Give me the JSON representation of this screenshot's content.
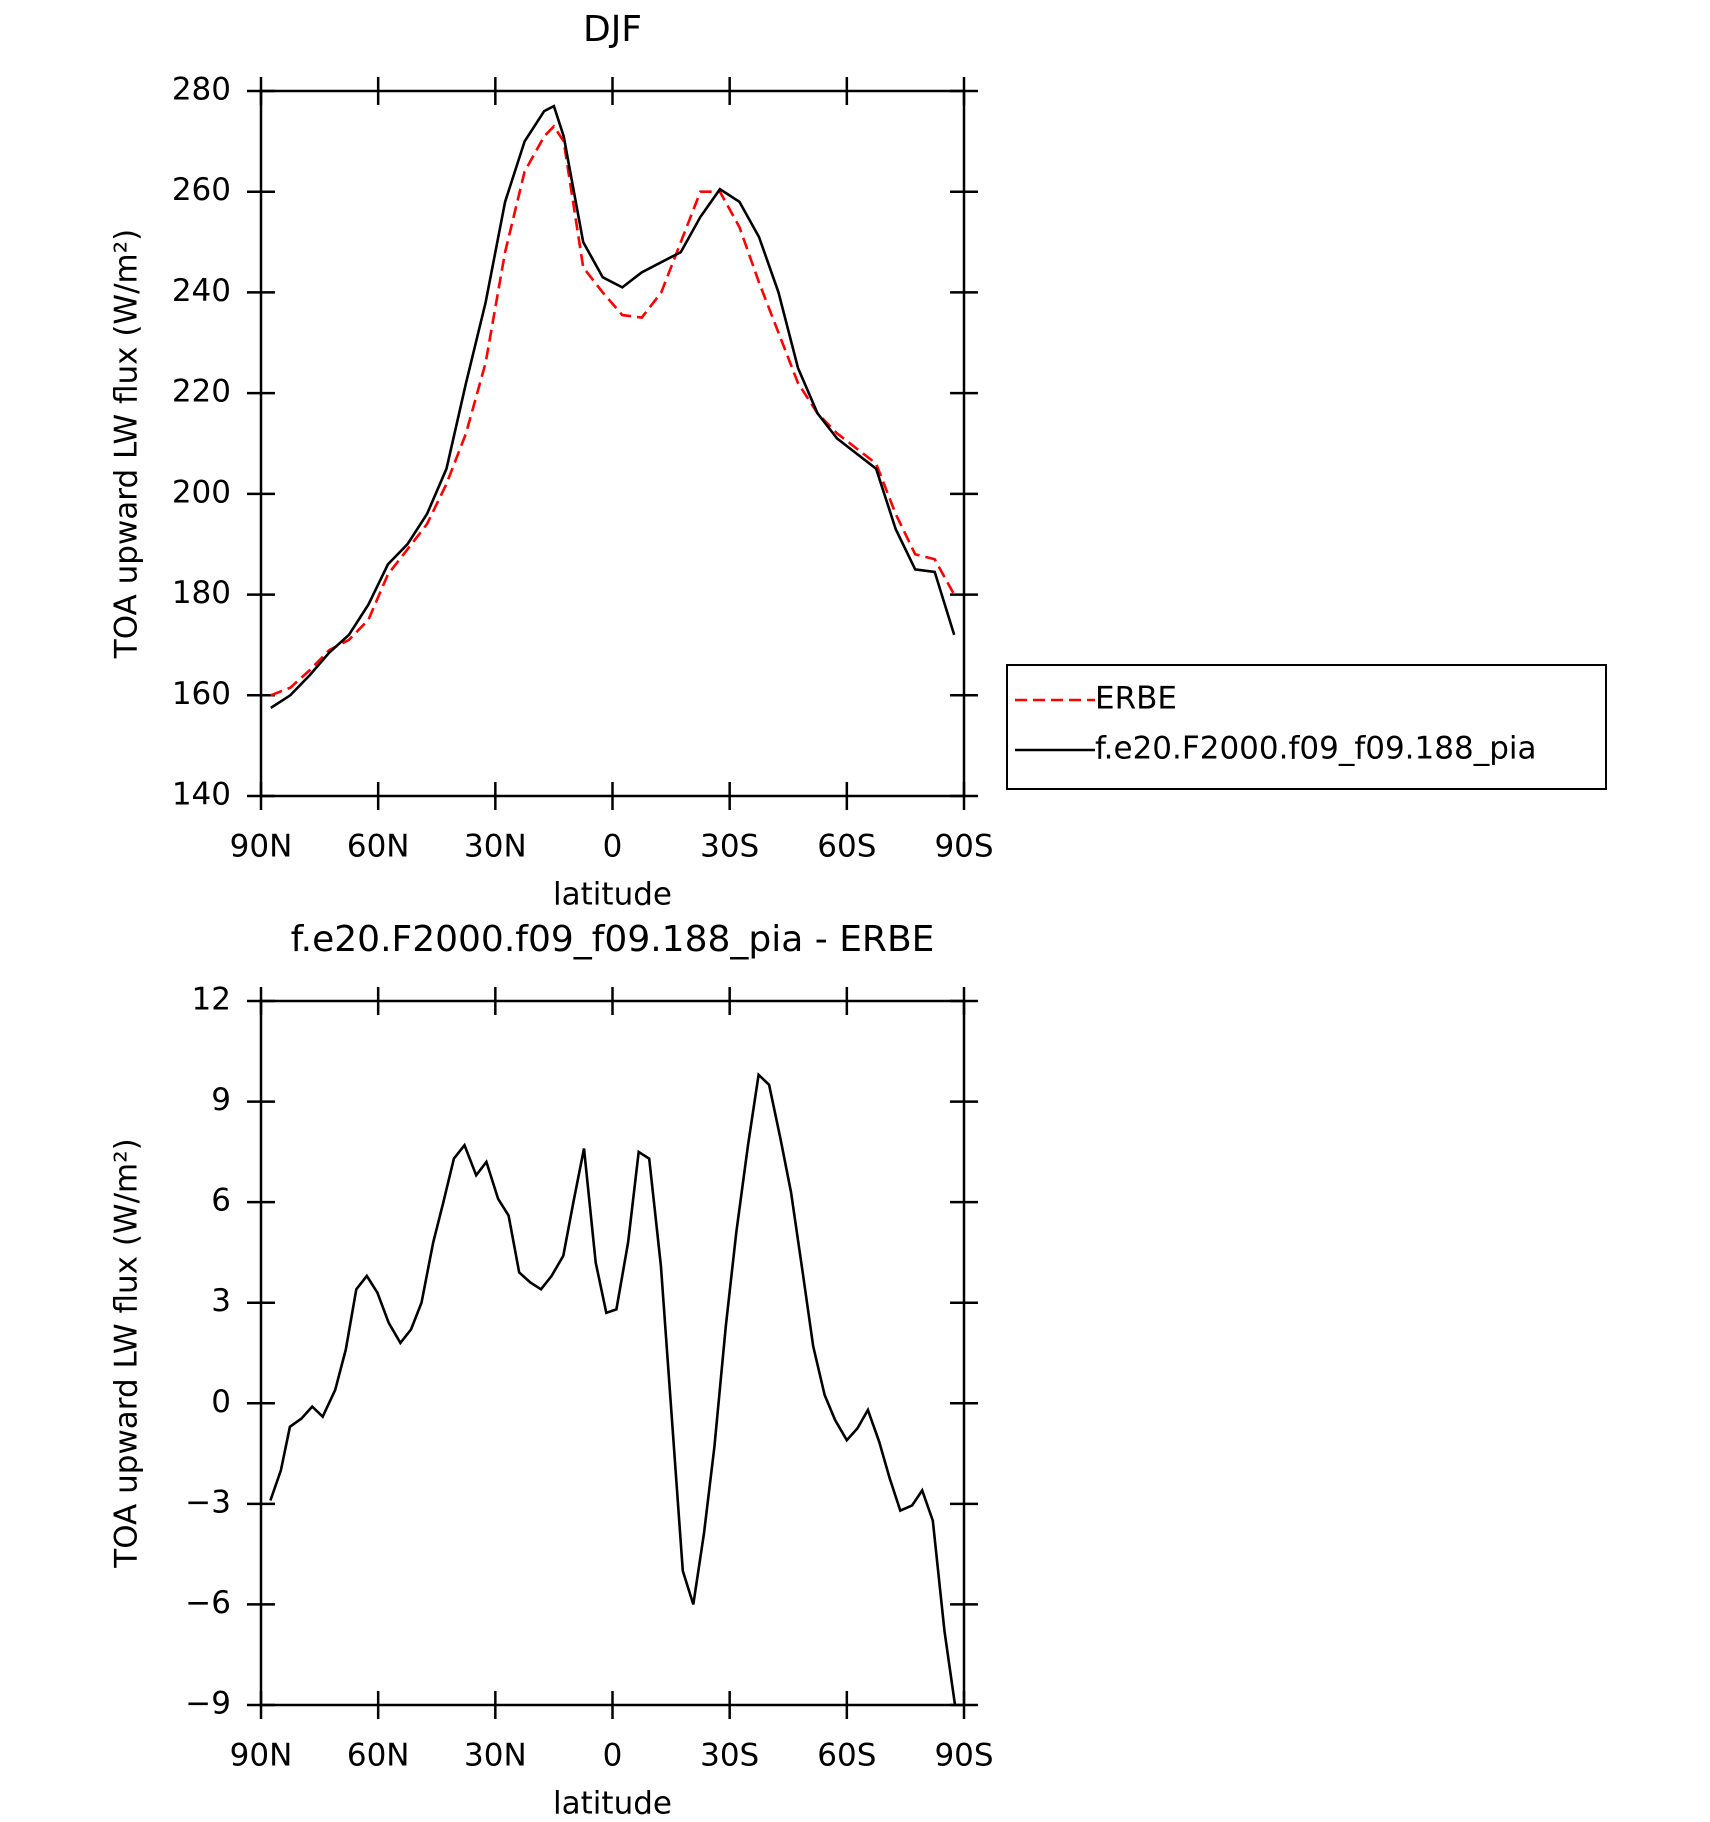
{
  "chart_data": [
    {
      "type": "line",
      "title": "DJF",
      "x_label": "latitude",
      "y_label": "TOA upward LW flux (W/m²)",
      "x": [
        87.5,
        82.5,
        77.5,
        72.5,
        67.5,
        62.5,
        57.5,
        52.5,
        47.5,
        42.5,
        37.5,
        32.5,
        27.5,
        22.5,
        17.5,
        15,
        12.5,
        7.5,
        2.5,
        -2.5,
        -7.5,
        -12.5,
        -17.5,
        -22.5,
        -27.5,
        -32.5,
        -37.5,
        -42.5,
        -47.5,
        -52.5,
        -57.5,
        -62.5,
        -67.5,
        -72.5,
        -77.5,
        -82.5,
        -87.5
      ],
      "series": [
        {
          "name": "ERBE",
          "color": "#ff0000",
          "dash": "dashed",
          "values": [
            160,
            161.5,
            165,
            169,
            171,
            175,
            184,
            189,
            194,
            202,
            212,
            226,
            248,
            264,
            271,
            273,
            270,
            245,
            240,
            235.5,
            235,
            240,
            250,
            260,
            260,
            253,
            242,
            232,
            222,
            216,
            212,
            209,
            206,
            196,
            188,
            187,
            180
          ]
        },
        {
          "name": "f.e20.F2000.f09_f09.188_pia",
          "color": "#000000",
          "dash": "solid",
          "values": [
            157.5,
            160,
            164,
            168.5,
            172,
            178,
            186,
            190,
            196,
            205,
            222,
            238,
            258,
            270,
            276,
            277,
            271,
            250,
            243,
            241,
            244,
            246,
            248,
            255,
            260.5,
            258,
            251,
            240,
            225,
            216,
            211,
            208,
            205,
            193,
            185,
            184.5,
            172
          ]
        }
      ],
      "xlim": [
        90,
        -90
      ],
      "xticks": [
        {
          "value": 90,
          "label": "90N"
        },
        {
          "value": 60,
          "label": "60N"
        },
        {
          "value": 30,
          "label": "30N"
        },
        0,
        {
          "value": -30,
          "label": "30S"
        },
        {
          "value": -60,
          "label": "60S"
        },
        {
          "value": -90,
          "label": "90S"
        }
      ],
      "ylim": [
        140,
        280
      ],
      "yticks": [
        140,
        160,
        180,
        200,
        220,
        240,
        260,
        280
      ],
      "legend": "outside-right"
    },
    {
      "type": "line",
      "title": "f.e20.F2000.f09_f09.188_pia - ERBE",
      "x_label": "latitude",
      "y_label": "TOA upward LW flux (W/m²)",
      "x": [
        87.6,
        84.9,
        82.6,
        79.6,
        76.9,
        74.2,
        71,
        68.3,
        65.6,
        62.9,
        60.2,
        57.3,
        54.3,
        51.6,
        48.9,
        45.9,
        43.3,
        40.6,
        37.9,
        34.9,
        32.3,
        29.3,
        26.6,
        23.9,
        21,
        18.3,
        15.6,
        12.6,
        10,
        7.3,
        4.3,
        1.6,
        -1,
        -4,
        -6.7,
        -9.4,
        -12.4,
        -15.1,
        -18,
        -20.7,
        -23.4,
        -26.1,
        -29,
        -31.7,
        -34.7,
        -37.4,
        -40.1,
        -43,
        -45.7,
        -48.7,
        -51.4,
        -54.3,
        -57,
        -60,
        -62.7,
        -65.4,
        -68.3,
        -71,
        -73.7,
        -76.7,
        -79.3,
        -82,
        -85,
        -87.7
      ],
      "series": [
        {
          "color": "#000000",
          "dash": "solid",
          "values": [
            -2.9,
            -2.0,
            -0.7,
            -0.45,
            -0.1,
            -0.4,
            0.4,
            1.6,
            3.4,
            3.8,
            3.3,
            2.4,
            1.8,
            2.2,
            3.0,
            4.8,
            6.0,
            7.3,
            7.7,
            6.8,
            7.2,
            6.1,
            5.6,
            3.9,
            3.6,
            3.4,
            3.8,
            4.4,
            6.0,
            7.6,
            4.2,
            2.7,
            2.8,
            4.8,
            7.5,
            7.3,
            4.1,
            -0.3,
            -5.0,
            -6.0,
            -3.9,
            -1.3,
            2.3,
            5.1,
            7.7,
            9.8,
            9.5,
            7.9,
            6.3,
            3.9,
            1.7,
            0.25,
            -0.5,
            -1.1,
            -0.75,
            -0.2,
            -1.15,
            -2.25,
            -3.2,
            -3.05,
            -2.6,
            -3.5,
            -6.8,
            -9.0
          ]
        }
      ],
      "xlim": [
        90,
        -90
      ],
      "xticks": [
        {
          "value": 90,
          "label": "90N"
        },
        {
          "value": 60,
          "label": "60N"
        },
        {
          "value": 30,
          "label": "30N"
        },
        0,
        {
          "value": -30,
          "label": "30S"
        },
        {
          "value": -60,
          "label": "60S"
        },
        {
          "value": -90,
          "label": "90S"
        }
      ],
      "ylim": [
        -9,
        12
      ],
      "yticks": [
        {
          "value": -9,
          "label": "−9"
        },
        {
          "value": -6,
          "label": "−6"
        },
        {
          "value": -3,
          "label": "−3"
        },
        0,
        3,
        6,
        9,
        12
      ]
    }
  ]
}
